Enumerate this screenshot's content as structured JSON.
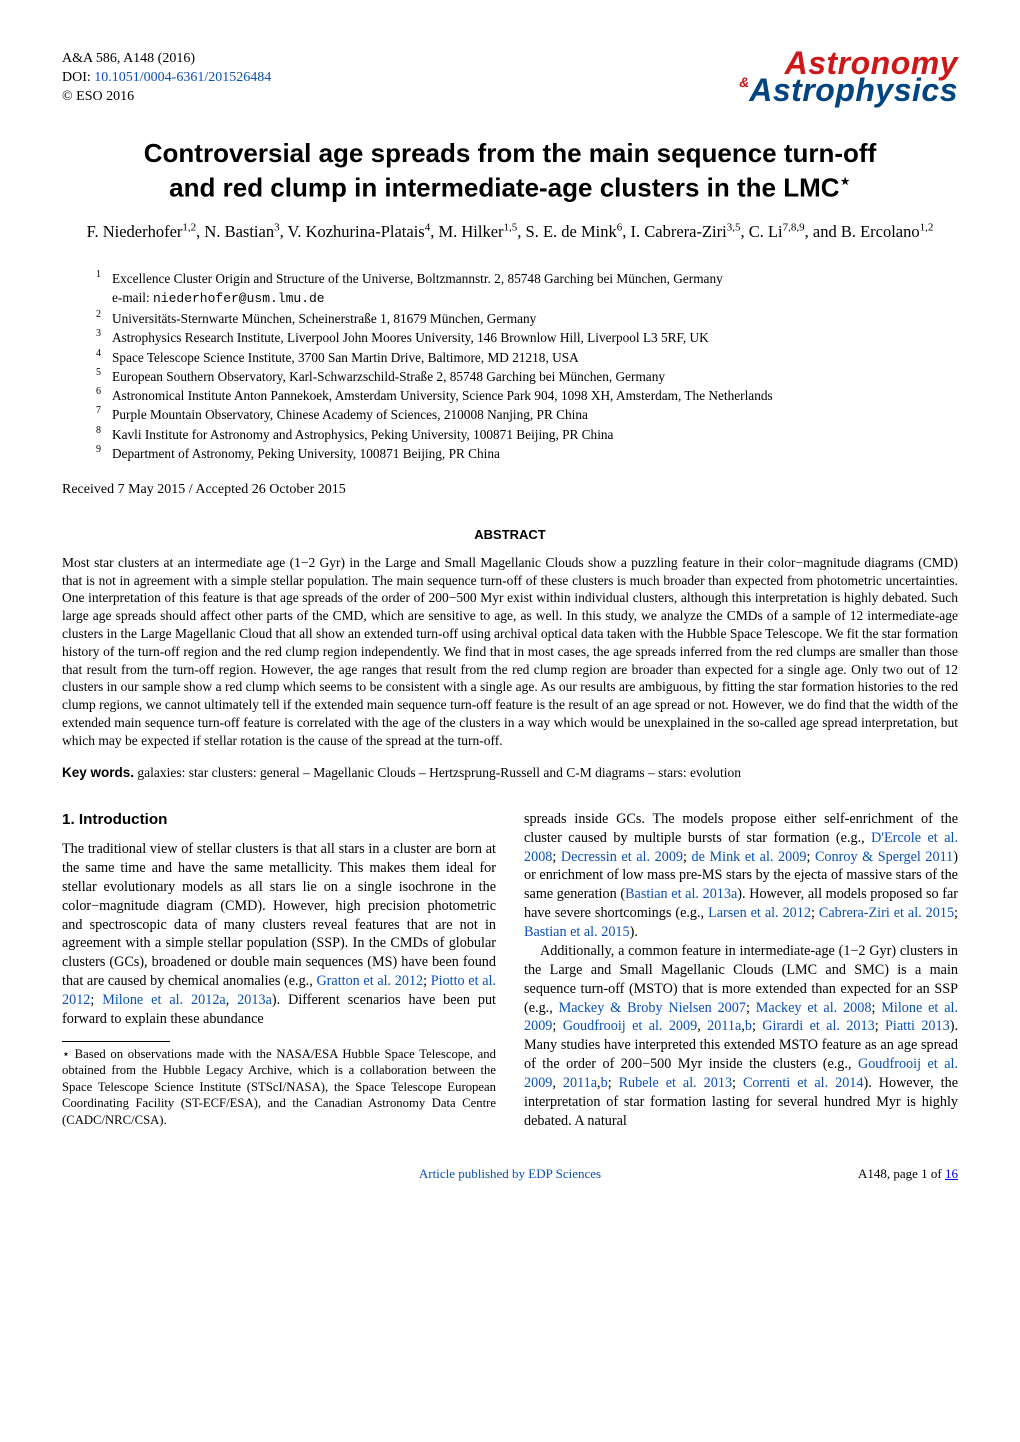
{
  "header": {
    "journal_ref": "A&A 586, A148 (2016)",
    "doi_label": "DOI: ",
    "doi_link_text": "10.1051/0004-6361/201526484",
    "copyright": "© ESO 2016",
    "logo_line1": "Astronomy",
    "logo_amp": "&",
    "logo_line2": "Astrophysics"
  },
  "title": {
    "line1": "Controversial age spreads from the main sequence turn-off",
    "line2": "and red clump in intermediate-age clusters in the LMC",
    "star": "⋆"
  },
  "authors_html": "F. Niederhofer<sup>1,2</sup>, N. Bastian<sup>3</sup>, V. Kozhurina-Platais<sup>4</sup>, M. Hilker<sup>1,5</sup>, S. E. de Mink<sup>6</sup>, I. Cabrera-Ziri<sup>3,5</sup>, C. Li<sup>7,8,9</sup>, and B. Ercolano<sup>1,2</sup>",
  "affiliations": [
    {
      "n": "1",
      "text": "Excellence Cluster Origin and Structure of the Universe, Boltzmannstr. 2, 85748 Garching bei München, Germany",
      "email_label": "e-mail: ",
      "email": "niederhofer@usm.lmu.de"
    },
    {
      "n": "2",
      "text": "Universitäts-Sternwarte München, Scheinerstraße 1, 81679 München, Germany"
    },
    {
      "n": "3",
      "text": "Astrophysics Research Institute, Liverpool John Moores University, 146 Brownlow Hill, Liverpool L3 5RF, UK"
    },
    {
      "n": "4",
      "text": "Space Telescope Science Institute, 3700 San Martin Drive, Baltimore, MD 21218, USA"
    },
    {
      "n": "5",
      "text": "European Southern Observatory, Karl-Schwarzschild-Straße 2, 85748 Garching bei München, Germany"
    },
    {
      "n": "6",
      "text": "Astronomical Institute Anton Pannekoek, Amsterdam University, Science Park 904, 1098 XH, Amsterdam, The Netherlands"
    },
    {
      "n": "7",
      "text": "Purple Mountain Observatory, Chinese Academy of Sciences, 210008 Nanjing, PR China"
    },
    {
      "n": "8",
      "text": "Kavli Institute for Astronomy and Astrophysics, Peking University, 100871 Beijing, PR China"
    },
    {
      "n": "9",
      "text": "Department of Astronomy, Peking University, 100871 Beijing, PR China"
    }
  ],
  "dates": "Received 7 May 2015 / Accepted 26 October 2015",
  "abstract": {
    "heading": "ABSTRACT",
    "body": "Most star clusters at an intermediate age (1−2 Gyr) in the Large and Small Magellanic Clouds show a puzzling feature in their color−magnitude diagrams (CMD) that is not in agreement with a simple stellar population. The main sequence turn-off of these clusters is much broader than expected from photometric uncertainties. One interpretation of this feature is that age spreads of the order of 200−500 Myr exist within individual clusters, although this interpretation is highly debated. Such large age spreads should affect other parts of the CMD, which are sensitive to age, as well. In this study, we analyze the CMDs of a sample of 12 intermediate-age clusters in the Large Magellanic Cloud that all show an extended turn-off using archival optical data taken with the Hubble Space Telescope. We fit the star formation history of the turn-off region and the red clump region independently. We find that in most cases, the age spreads inferred from the red clumps are smaller than those that result from the turn-off region. However, the age ranges that result from the red clump region are broader than expected for a single age. Only two out of 12 clusters in our sample show a red clump which seems to be consistent with a single age. As our results are ambiguous, by fitting the star formation histories to the red clump regions, we cannot ultimately tell if the extended main sequence turn-off feature is the result of an age spread or not. However, we do find that the width of the extended main sequence turn-off feature is correlated with the age of the clusters in a way which would be unexplained in the so-called age spread interpretation, but which may be expected if stellar rotation is the cause of the spread at the turn-off."
  },
  "keywords": {
    "label": "Key words.",
    "text": " galaxies: star clusters: general – Magellanic Clouds – Hertzsprung-Russell and C-M diagrams – stars: evolution"
  },
  "section1_heading": "1. Introduction",
  "col_left": {
    "p1": "The traditional view of stellar clusters is that all stars in a cluster are born at the same time and have the same metallicity. This makes them ideal for stellar evolutionary models as all stars lie on a single isochrone in the color−magnitude diagram (CMD). However, high precision photometric and spectroscopic data of many clusters reveal features that are not in agreement with a simple stellar population (SSP). In the CMDs of globular clusters (GCs), broadened or double main sequences (MS) have been found that are caused by chemical anomalies (e.g., ",
    "c1": "Gratton et al. 2012",
    "p2": "; ",
    "c2": "Piotto et al. 2012",
    "p3": "; ",
    "c3": "Milone et al. 2012a",
    "p4": ", ",
    "c4": "2013a",
    "p5": "). Different scenarios have been put forward to explain these abundance"
  },
  "footnote": "⋆ Based on observations made with the NASA/ESA Hubble Space Telescope, and obtained from the Hubble Legacy Archive, which is a collaboration between the Space Telescope Science Institute (STScI/NASA), the Space Telescope European Coordinating Facility (ST-ECF/ESA), and the Canadian Astronomy Data Centre (CADC/NRC/CSA).",
  "col_right": {
    "p1a": "spreads inside GCs. The models propose either self-enrichment of the cluster caused by multiple bursts of star formation (e.g., ",
    "c1": "D'Ercole et al. 2008",
    "p1b": "; ",
    "c2": "Decressin et al. 2009",
    "p1c": "; ",
    "c3": "de Mink et al. 2009",
    "p1d": "; ",
    "c4": "Conroy & Spergel 2011",
    "p1e": ") or enrichment of low mass pre-MS stars by the ejecta of massive stars of the same generation (",
    "c5": "Bastian et al. 2013a",
    "p1f": "). However, all models proposed so far have severe shortcomings (e.g., ",
    "c6": "Larsen et al. 2012",
    "p1g": "; ",
    "c7": "Cabrera-Ziri et al. 2015",
    "p1h": "; ",
    "c8": "Bastian et al. 2015",
    "p1i": ").",
    "p2a": "Additionally, a common feature in intermediate-age (1−2 Gyr) clusters in the Large and Small Magellanic Clouds (LMC and SMC) is a main sequence turn-off (MSTO) that is more extended than expected for an SSP (e.g., ",
    "c9": "Mackey & Broby Nielsen 2007",
    "p2b": "; ",
    "c10": "Mackey et al. 2008",
    "p2c": "; ",
    "c11": "Milone et al. 2009",
    "p2d": "; ",
    "c12": "Goudfrooij et al. 2009",
    "p2e": ", ",
    "c13": "2011a",
    "p2f": ",",
    "c14": "b",
    "p2g": "; ",
    "c15": "Girardi et al. 2013",
    "p2h": "; ",
    "c16": "Piatti 2013",
    "p2i": "). Many studies have interpreted this extended MSTO feature as an age spread of the order of 200−500 Myr inside the clusters (e.g., ",
    "c17": "Goudfrooij et al. 2009",
    "p2j": ", ",
    "c18": "2011a",
    "p2k": ",",
    "c19": "b",
    "p2l": "; ",
    "c20": "Rubele et al. 2013",
    "p2m": "; ",
    "c21": "Correnti et al. 2014",
    "p2n": "). However, the interpretation of star formation lasting for several hundred Myr is highly debated. A natural"
  },
  "footer": {
    "center_link": "Article published by EDP Sciences",
    "right": "A148, page 1 of ",
    "right_link": "16"
  },
  "colors": {
    "link": "#0a4fb5",
    "logo_red": "#cd1719",
    "logo_blue": "#004481"
  }
}
